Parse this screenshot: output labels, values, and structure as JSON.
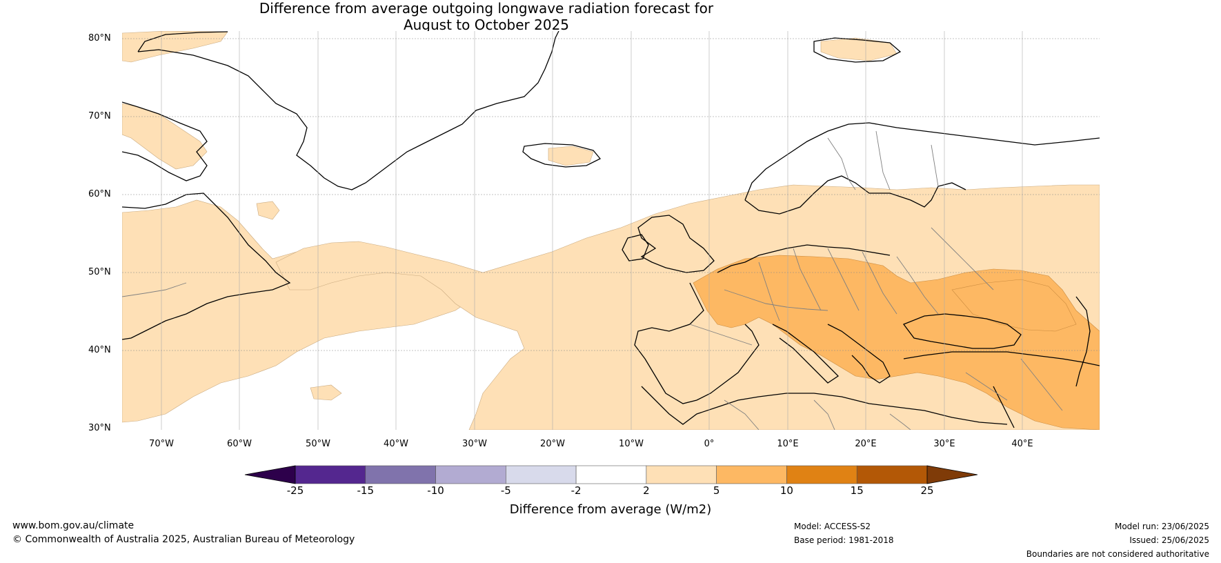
{
  "title_line1": "Difference from average outgoing longwave radiation forecast for",
  "title_line2": "August to October 2025",
  "lat_labels": [
    "80°N",
    "70°N",
    "60°N",
    "50°N",
    "40°N",
    "30°N"
  ],
  "lon_labels": [
    "70°W",
    "60°W",
    "50°W",
    "40°W",
    "30°W",
    "20°W",
    "10°W",
    "0°",
    "10°E",
    "20°E",
    "30°E",
    "40°E"
  ],
  "colorbar": {
    "label": "Difference from average (W/m2)",
    "ticks": [
      "-25",
      "-15",
      "-10",
      "-5",
      "-2",
      "2",
      "5",
      "10",
      "15",
      "25"
    ],
    "bins": [
      {
        "from": -25,
        "to": -15,
        "color": "#54278f"
      },
      {
        "from": -15,
        "to": -10,
        "color": "#8073ac"
      },
      {
        "from": -10,
        "to": -5,
        "color": "#b2abd2"
      },
      {
        "from": -5,
        "to": -2,
        "color": "#d8daeb"
      },
      {
        "from": -2,
        "to": 2,
        "color": "#ffffff"
      },
      {
        "from": 2,
        "to": 5,
        "color": "#fee0b6"
      },
      {
        "from": 5,
        "to": 10,
        "color": "#fdb863"
      },
      {
        "from": 10,
        "to": 15,
        "color": "#e08214"
      },
      {
        "from": 15,
        "to": 25,
        "color": "#b35806"
      }
    ],
    "under_color": "#2d004b",
    "over_color": "#7f3b08"
  },
  "map_colors": {
    "light_anomaly": "#fee0b6",
    "moderate_anomaly": "#fdb863",
    "coastline": "#000000",
    "borders": "#808080"
  },
  "footer": {
    "website": "www.bom.gov.au/climate",
    "copyright": "© Commonwealth of Australia 2025, Australian Bureau of Meteorology",
    "model": "Model: ACCESS-S2",
    "base_period": "Base period: 1981-2018",
    "model_run": "Model run: 23/06/2025",
    "issued": "Issued: 25/06/2025",
    "disclaimer": "Boundaries are not considered authoritative"
  }
}
